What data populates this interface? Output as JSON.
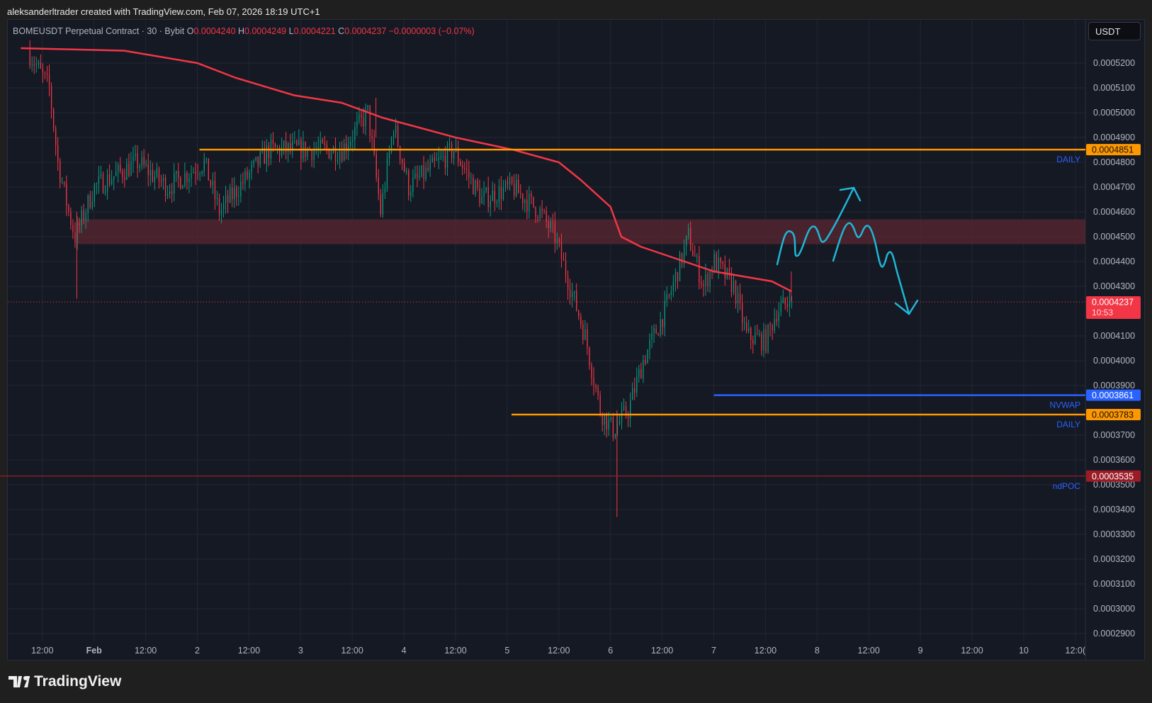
{
  "caption": "aleksanderltrader created with TradingView.com, Feb 07, 2026 18:19 UTC+1",
  "legend": {
    "symbol": "BOMEUSDT Perpetual Contract · 30 · Bybit",
    "o_label": "O",
    "o": "0.0004240",
    "h_label": "H",
    "h": "0.0004249",
    "l_label": "L",
    "l": "0.0004221",
    "c_label": "C",
    "c": "0.0004237",
    "change": "−0.0000003 (−0.07%)"
  },
  "currency_button": "USDT",
  "price_ticks": [
    "0.0005200",
    "0.0005100",
    "0.0005000",
    "0.0004900",
    "0.0004800",
    "0.0004700",
    "0.0004600",
    "0.0004500",
    "0.0004400",
    "0.0004300",
    "0.0004100",
    "0.0004000",
    "0.0003900",
    "0.0003700",
    "0.0003600",
    "0.0003500",
    "0.0003400",
    "0.0003300",
    "0.0003200",
    "0.0003100",
    "0.0003000",
    "0.0002900"
  ],
  "time_ticks": [
    "12:00",
    "Feb",
    "12:00",
    "2",
    "12:00",
    "3",
    "12:00",
    "4",
    "12:00",
    "5",
    "12:00",
    "6",
    "12:00",
    "7",
    "12:00",
    "8",
    "12:00",
    "9",
    "12:00",
    "10",
    "12:0("
  ],
  "levels": [
    {
      "name": "daily-high",
      "price": 0.0004851,
      "label": "0.0004851",
      "tag": "DAILY",
      "color": "#ff9800",
      "start_hours": 24.5
    },
    {
      "name": "nvwap",
      "price": 0.0003861,
      "label": "0.0003861",
      "tag": "NVWAP",
      "color": "#2962ff",
      "start_hours": 144
    },
    {
      "name": "daily-low",
      "price": 0.0003783,
      "label": "0.0003783",
      "tag": "DAILY",
      "color": "#ff9800",
      "start_hours": 97
    },
    {
      "name": "ndpoc",
      "price": 0.0003535,
      "label": "0.0003535",
      "tag": "ndPOC",
      "color": "#9c1c26",
      "start_hours": -22
    }
  ],
  "current_price": {
    "label": "0.0004237",
    "countdown": "10:53",
    "value": 0.0004237,
    "color": "#f23645"
  },
  "zone": {
    "top": 0.000457,
    "bottom": 0.000447,
    "start_hours": -4
  },
  "price_path": [
    [
      -15,
      0.000525
    ],
    [
      -10,
      0.00051
    ],
    [
      -8,
      0.00048
    ],
    [
      -5.5,
      0.00046
    ],
    [
      -4,
      0.00045
    ],
    [
      0.5,
      0.00047
    ],
    [
      10.5,
      0.00048
    ],
    [
      17.5,
      0.00047
    ],
    [
      26,
      0.00048
    ],
    [
      29.5,
      0.00046
    ],
    [
      41,
      0.000485
    ],
    [
      58,
      0.000485
    ],
    [
      64,
      0.0005
    ],
    [
      67,
      0.00046
    ],
    [
      70,
      0.000495
    ],
    [
      73.5,
      0.00047
    ],
    [
      84,
      0.000485
    ],
    [
      90.5,
      0.000465
    ],
    [
      97.5,
      0.00047
    ],
    [
      104,
      0.00046
    ],
    [
      107.5,
      0.00045
    ],
    [
      111,
      0.00043
    ],
    [
      114.5,
      0.00041
    ],
    [
      118,
      0.00038
    ],
    [
      121,
      0.000372
    ],
    [
      124.5,
      0.00038
    ],
    [
      128,
      0.0004
    ],
    [
      133,
      0.00042
    ],
    [
      138.5,
      0.00045
    ],
    [
      142,
      0.00043
    ],
    [
      144.5,
      0.00044
    ],
    [
      149,
      0.00043
    ],
    [
      152,
      0.00041
    ],
    [
      156.5,
      0.000408
    ],
    [
      159,
      0.00042
    ],
    [
      162,
      0.0004237
    ]
  ],
  "vwap_path": [
    [
      -17,
      0.000526
    ],
    [
      7,
      0.000525
    ],
    [
      24,
      0.00052
    ],
    [
      33,
      0.000514
    ],
    [
      46.5,
      0.000507
    ],
    [
      57.5,
      0.000504
    ],
    [
      67,
      0.000498
    ],
    [
      84,
      0.00049
    ],
    [
      97.5,
      0.000485
    ],
    [
      108,
      0.00048
    ],
    [
      113,
      0.000473
    ],
    [
      120,
      0.000462
    ],
    [
      122.5,
      0.00045
    ],
    [
      127,
      0.000446
    ],
    [
      135.5,
      0.000441
    ],
    [
      144,
      0.000436
    ],
    [
      157.5,
      0.000432
    ],
    [
      162,
      0.000428
    ]
  ],
  "colors": {
    "up": "#089981",
    "down": "#f23645",
    "vwap": "#f23645",
    "drawing": "#1fb6d6",
    "zone": "#5a2530"
  },
  "brand": "TradingView"
}
